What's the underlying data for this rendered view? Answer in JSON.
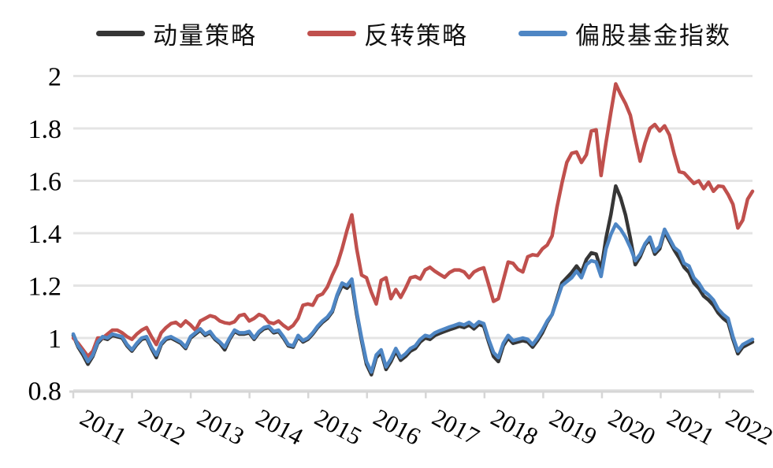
{
  "colors": {
    "background": "#ffffff",
    "grid": "#e4e4e4",
    "axis": "#d6d6d6",
    "momentum": "#363636",
    "reversal": "#c0504d",
    "fund_index": "#4e86c4"
  },
  "legend": {
    "position": "top",
    "items": [
      {
        "key": "momentum",
        "label": "动量策略",
        "color": "#363636"
      },
      {
        "key": "reversal",
        "label": "反转策略",
        "color": "#c0504d"
      },
      {
        "key": "fund-index",
        "label": "偏股基金指数",
        "color": "#4e86c4"
      }
    ]
  },
  "chart_data": {
    "type": "line",
    "title": "",
    "xlabel": "",
    "ylabel": "",
    "grid": true,
    "legend_position": "top",
    "x_axis": {
      "tick_labels": [
        "2011",
        "2012",
        "2013",
        "2014",
        "2015",
        "2016",
        "2017",
        "2018",
        "2019",
        "2020",
        "2021",
        "2022"
      ],
      "start_year": 2011,
      "points_per_year": 12,
      "label_rotation_deg": 28
    },
    "y_axis": {
      "tick_labels": [
        "2",
        "1.8",
        "1.6",
        "1.4",
        "1.2",
        "1",
        "0.8"
      ],
      "tick_values": [
        2,
        1.8,
        1.6,
        1.4,
        1.2,
        1,
        0.8
      ],
      "range": [
        0.8,
        2.0
      ]
    },
    "series": [
      {
        "key": "momentum",
        "name": "动量策略",
        "color": "#363636",
        "values": [
          1.01,
          0.965,
          0.935,
          0.9,
          0.93,
          0.98,
          1.0,
          0.995,
          1.01,
          1.005,
          1.0,
          0.97,
          0.95,
          0.975,
          0.995,
          1.0,
          0.96,
          0.925,
          0.975,
          0.995,
          1.0,
          0.99,
          0.98,
          0.96,
          1.0,
          1.015,
          1.03,
          1.01,
          1.02,
          0.995,
          0.98,
          0.955,
          0.995,
          1.025,
          1.015,
          1.015,
          1.02,
          0.995,
          1.02,
          1.035,
          1.04,
          1.02,
          1.025,
          1.0,
          0.97,
          0.965,
          1.005,
          0.985,
          0.995,
          1.015,
          1.04,
          1.06,
          1.075,
          1.1,
          1.16,
          1.2,
          1.19,
          1.21,
          1.09,
          0.99,
          0.9,
          0.86,
          0.925,
          0.945,
          0.88,
          0.91,
          0.95,
          0.915,
          0.93,
          0.95,
          0.96,
          0.985,
          1.0,
          0.995,
          1.01,
          1.018,
          1.025,
          1.032,
          1.038,
          1.045,
          1.04,
          1.05,
          1.035,
          1.052,
          1.045,
          0.985,
          0.93,
          0.91,
          0.97,
          1.0,
          0.98,
          0.985,
          0.99,
          0.985,
          0.965,
          0.99,
          1.02,
          1.06,
          1.09,
          1.15,
          1.21,
          1.23,
          1.25,
          1.275,
          1.25,
          1.3,
          1.325,
          1.32,
          1.26,
          1.38,
          1.47,
          1.58,
          1.535,
          1.47,
          1.38,
          1.28,
          1.31,
          1.355,
          1.375,
          1.32,
          1.34,
          1.405,
          1.37,
          1.335,
          1.305,
          1.27,
          1.25,
          1.21,
          1.19,
          1.16,
          1.145,
          1.125,
          1.095,
          1.075,
          1.06,
          0.995,
          0.94,
          0.965,
          0.975,
          0.985
        ]
      },
      {
        "key": "reversal",
        "name": "反转策略",
        "color": "#c0504d",
        "values": [
          1.0,
          0.98,
          0.955,
          0.93,
          0.95,
          1.0,
          1.0,
          1.015,
          1.03,
          1.03,
          1.02,
          1.005,
          0.995,
          1.015,
          1.03,
          1.04,
          1.005,
          0.975,
          1.02,
          1.04,
          1.055,
          1.06,
          1.045,
          1.065,
          1.05,
          1.03,
          1.065,
          1.075,
          1.085,
          1.08,
          1.065,
          1.058,
          1.055,
          1.062,
          1.085,
          1.09,
          1.065,
          1.075,
          1.09,
          1.082,
          1.06,
          1.055,
          1.065,
          1.048,
          1.035,
          1.048,
          1.075,
          1.125,
          1.13,
          1.125,
          1.16,
          1.168,
          1.195,
          1.24,
          1.28,
          1.34,
          1.41,
          1.47,
          1.34,
          1.24,
          1.23,
          1.175,
          1.13,
          1.22,
          1.23,
          1.15,
          1.185,
          1.155,
          1.19,
          1.23,
          1.235,
          1.225,
          1.26,
          1.27,
          1.255,
          1.243,
          1.232,
          1.25,
          1.26,
          1.26,
          1.252,
          1.23,
          1.252,
          1.262,
          1.268,
          1.205,
          1.14,
          1.15,
          1.22,
          1.29,
          1.285,
          1.262,
          1.252,
          1.31,
          1.318,
          1.315,
          1.34,
          1.355,
          1.39,
          1.5,
          1.59,
          1.67,
          1.705,
          1.71,
          1.67,
          1.7,
          1.79,
          1.795,
          1.62,
          1.745,
          1.86,
          1.97,
          1.93,
          1.895,
          1.85,
          1.76,
          1.675,
          1.745,
          1.8,
          1.815,
          1.79,
          1.81,
          1.775,
          1.7,
          1.635,
          1.63,
          1.61,
          1.59,
          1.6,
          1.57,
          1.595,
          1.56,
          1.58,
          1.578,
          1.548,
          1.51,
          1.42,
          1.45,
          1.53,
          1.56
        ]
      },
      {
        "key": "fund-index",
        "name": "偏股基金指数",
        "color": "#4e86c4",
        "values": [
          1.015,
          0.97,
          0.945,
          0.91,
          0.935,
          0.985,
          1.005,
          1.0,
          1.015,
          1.01,
          1.005,
          0.975,
          0.955,
          0.98,
          1.0,
          1.005,
          0.965,
          0.935,
          0.98,
          1.0,
          1.005,
          0.995,
          0.985,
          0.965,
          1.005,
          1.02,
          1.035,
          1.015,
          1.025,
          1.0,
          0.985,
          0.965,
          1.0,
          1.03,
          1.02,
          1.02,
          1.025,
          1.0,
          1.025,
          1.04,
          1.045,
          1.025,
          1.03,
          1.005,
          0.975,
          0.97,
          1.01,
          0.99,
          1.0,
          1.02,
          1.045,
          1.065,
          1.08,
          1.105,
          1.165,
          1.21,
          1.2,
          1.225,
          1.1,
          1.0,
          0.91,
          0.87,
          0.935,
          0.955,
          0.89,
          0.92,
          0.96,
          0.925,
          0.94,
          0.96,
          0.97,
          0.995,
          1.01,
          1.005,
          1.02,
          1.028,
          1.035,
          1.042,
          1.048,
          1.055,
          1.05,
          1.06,
          1.045,
          1.062,
          1.055,
          0.995,
          0.945,
          0.925,
          0.98,
          1.01,
          0.99,
          0.995,
          1.0,
          0.995,
          0.975,
          1.0,
          1.03,
          1.065,
          1.09,
          1.145,
          1.2,
          1.215,
          1.23,
          1.255,
          1.23,
          1.28,
          1.295,
          1.29,
          1.235,
          1.34,
          1.395,
          1.435,
          1.415,
          1.385,
          1.345,
          1.295,
          1.32,
          1.36,
          1.385,
          1.33,
          1.35,
          1.415,
          1.38,
          1.345,
          1.33,
          1.285,
          1.275,
          1.23,
          1.21,
          1.18,
          1.165,
          1.145,
          1.11,
          1.09,
          1.075,
          1.005,
          0.95,
          0.975,
          0.985,
          0.995
        ]
      }
    ]
  }
}
